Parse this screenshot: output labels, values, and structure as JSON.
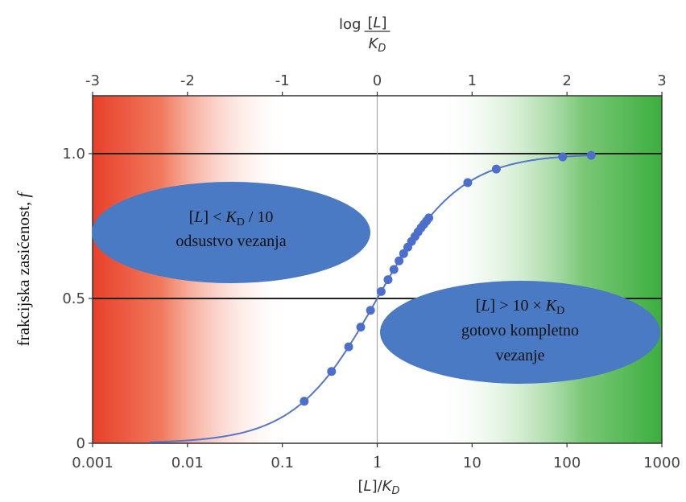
{
  "chart_data": {
    "type": "scatter",
    "title": "",
    "x_scale": "log",
    "xlim": [
      0.001,
      1000
    ],
    "ylim": [
      0,
      1.2
    ],
    "xlabel": "[L]/K_D",
    "top_xlabel": "log [L]/K_D",
    "ylabel": "frakcijska zasićenost, f",
    "x_ticks": [
      "0.001",
      "0.01",
      "0.1",
      "1",
      "10",
      "100",
      "1000"
    ],
    "top_ticks": [
      "-3",
      "-2",
      "-1",
      "0",
      "1",
      "2",
      "3"
    ],
    "y_ticks": [
      "0",
      "0.5",
      "1.0"
    ],
    "reference_lines_y": [
      0.5,
      1.0
    ],
    "reference_line_x": 1,
    "curve": "f = x / (1 + x)",
    "points_x": [
      0.17,
      0.33,
      0.5,
      0.67,
      0.85,
      1.1,
      1.3,
      1.5,
      1.7,
      1.9,
      2.1,
      2.3,
      2.5,
      2.7,
      2.9,
      3.1,
      3.3,
      3.5,
      9,
      18,
      90,
      180
    ],
    "points_y": [
      0.145,
      0.248,
      0.333,
      0.401,
      0.459,
      0.524,
      0.565,
      0.6,
      0.63,
      0.655,
      0.677,
      0.697,
      0.714,
      0.73,
      0.744,
      0.756,
      0.767,
      0.778,
      0.9,
      0.947,
      0.989,
      0.994
    ],
    "colors": {
      "low": "#e8402a",
      "high": "#3cae3f",
      "curve": "#5577c9",
      "bubble": "#4a7ac4"
    },
    "annotations": [
      {
        "lines": [
          "[L] < K_D / 10",
          "odsustvo vezanja"
        ]
      },
      {
        "lines": [
          "[L] > 10 × K_D",
          "gotovo kompletno",
          "vezanje"
        ]
      }
    ]
  }
}
